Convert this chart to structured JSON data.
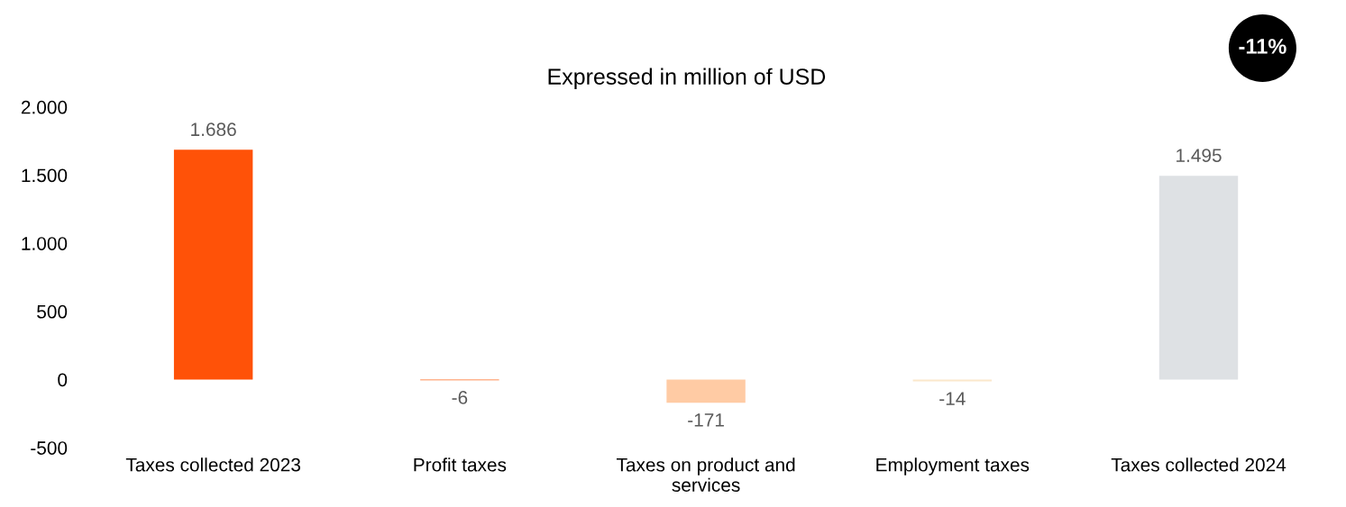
{
  "chart_data": {
    "type": "bar",
    "title": "Expressed in million of USD",
    "categories": [
      "Taxes collected 2023",
      "Profit taxes",
      "Taxes on product and services",
      "Employment taxes",
      "Taxes collected 2024"
    ],
    "values": [
      1686,
      -6,
      -171,
      -14,
      1495
    ],
    "colors": [
      "#ff5208",
      "#ff6a1f",
      "#ffcba4",
      "#fbe8cc",
      "#dee1e4"
    ],
    "value_labels": [
      "1.686",
      "-6",
      "-171",
      "-14",
      "1.495"
    ],
    "ylim": [
      -500,
      2000
    ],
    "yticks": [
      {
        "value": -500,
        "label": "-500"
      },
      0,
      {
        "value": 500,
        "label": "500"
      },
      {
        "value": 1000,
        "label": "1.000"
      },
      {
        "value": 1500,
        "label": "1.500"
      },
      {
        "value": 2000,
        "label": "2.000"
      }
    ],
    "grid": false,
    "annotations": [
      "-11%"
    ]
  }
}
